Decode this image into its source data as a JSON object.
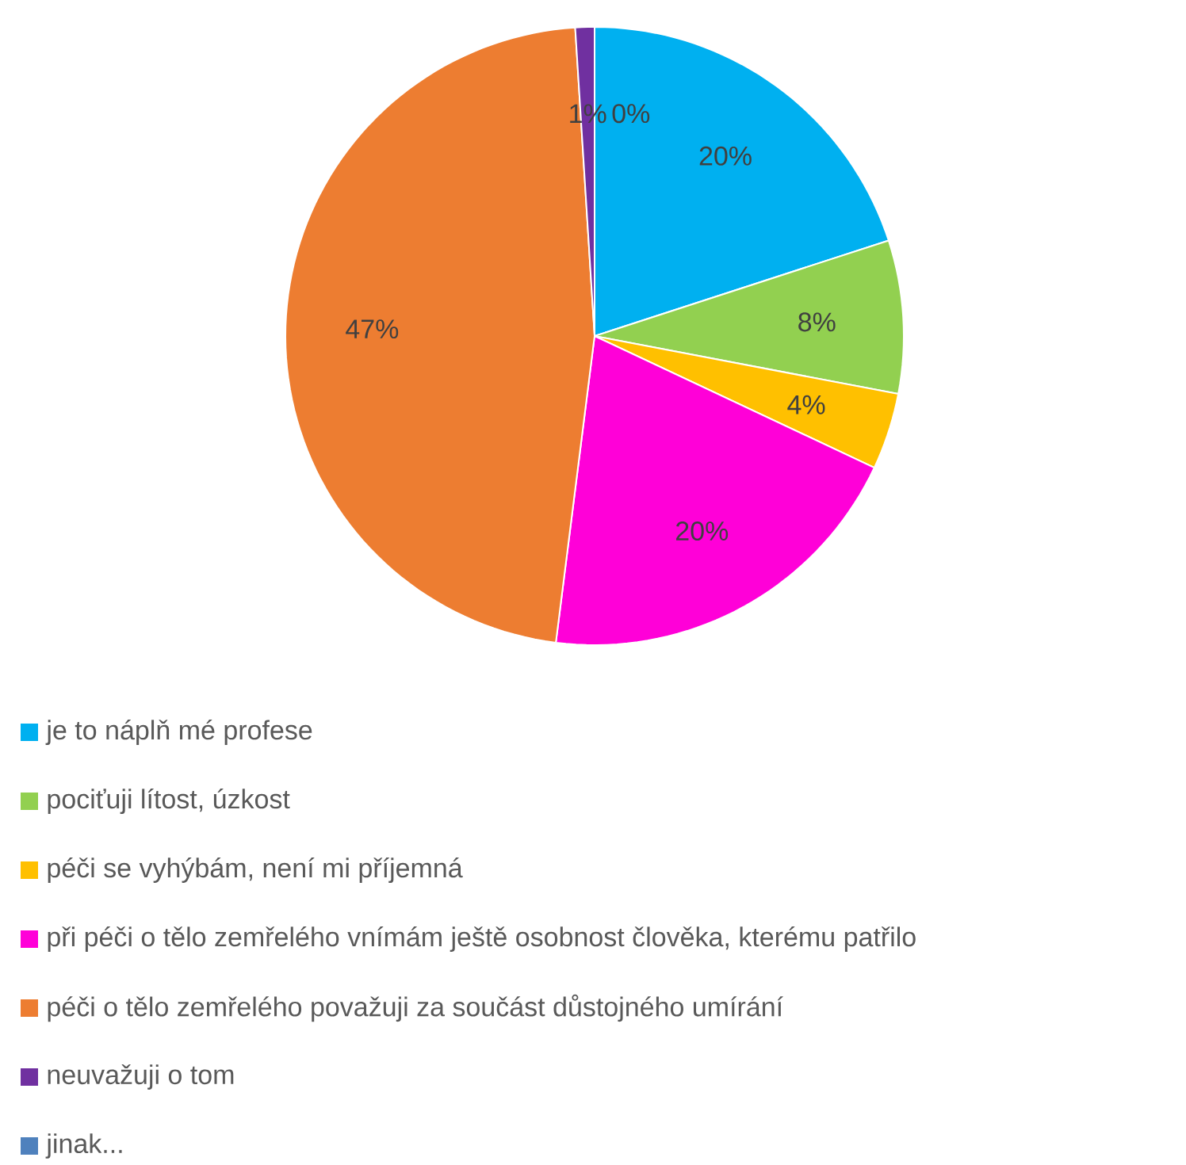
{
  "chart_data": {
    "type": "pie",
    "categories": [
      "je to náplň mé profese",
      "pociťuji lítost, úzkost",
      "péči se vyhýbám, není mi příjemná",
      "při péči o tělo zemřelého vnímám ještě osobnost člověka, kterému patřilo",
      "péči o tělo zemřelého považuji za součást důstojného umírání",
      "neuvažuji o tom",
      "jinak..."
    ],
    "values": [
      20,
      8,
      4,
      20,
      47,
      1,
      0
    ],
    "value_labels": [
      "20%",
      "8%",
      "4%",
      "20%",
      "47%",
      "1%",
      "0%"
    ],
    "colors": [
      "#00b0f0",
      "#92d050",
      "#ffc000",
      "#ff00d8",
      "#ed7d31",
      "#7030a0",
      "#4f81bd"
    ],
    "legend": "bottom"
  }
}
